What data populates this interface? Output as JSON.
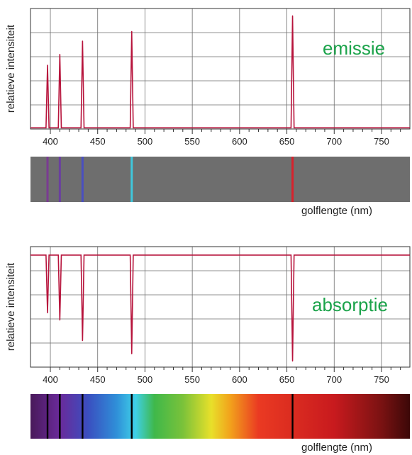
{
  "chart_data": [
    {
      "type": "line",
      "title": "",
      "annotation": "emissie",
      "ylabel": "relatieve intensiteit",
      "xlabel": "",
      "xlim": [
        379,
        780
      ],
      "ylim": [
        0,
        1
      ],
      "x_ticks": [
        400,
        450,
        500,
        550,
        600,
        650,
        700,
        750
      ],
      "grid": true,
      "line_color": "#b7143c",
      "series": [
        {
          "lines_nm": [
            397,
            410,
            434,
            486,
            656
          ],
          "peak_heights": [
            0.53,
            0.62,
            0.73,
            0.81,
            0.94
          ]
        }
      ]
    },
    {
      "type": "spectrum-strip",
      "kind": "emission",
      "xlabel": "golflengte (nm)",
      "background": "#6e6e6e",
      "lines": [
        {
          "nm": 397,
          "color": "#7a3b92"
        },
        {
          "nm": 410,
          "color": "#6a3fa0"
        },
        {
          "nm": 434,
          "color": "#4a4fc0"
        },
        {
          "nm": 486,
          "color": "#3fc7dc"
        },
        {
          "nm": 656,
          "color": "#d8222c"
        }
      ]
    },
    {
      "type": "line",
      "title": "",
      "annotation": "absorptie",
      "ylabel": "relatieve intensiteit",
      "xlabel": "",
      "xlim": [
        379,
        780
      ],
      "ylim": [
        0,
        1
      ],
      "x_ticks": [
        400,
        450,
        500,
        550,
        600,
        650,
        700,
        750
      ],
      "grid": true,
      "baseline": 0.93,
      "line_color": "#b7143c",
      "series": [
        {
          "lines_nm": [
            397,
            410,
            434,
            486,
            656
          ],
          "dip_bottoms": [
            0.45,
            0.39,
            0.22,
            0.11,
            0.05
          ]
        }
      ]
    },
    {
      "type": "spectrum-strip",
      "kind": "absorption",
      "xlabel": "golflengte (nm)",
      "line_color": "#000000",
      "lines_nm": [
        397,
        410,
        434,
        486,
        656
      ],
      "gradient": [
        {
          "nm": 380,
          "color": "#4a1a5c"
        },
        {
          "nm": 410,
          "color": "#6a2a9a"
        },
        {
          "nm": 440,
          "color": "#3a4fc0"
        },
        {
          "nm": 470,
          "color": "#2f8fd8"
        },
        {
          "nm": 490,
          "color": "#3fd0e8"
        },
        {
          "nm": 510,
          "color": "#3fb84a"
        },
        {
          "nm": 540,
          "color": "#7ac23a"
        },
        {
          "nm": 570,
          "color": "#e8e02a"
        },
        {
          "nm": 590,
          "color": "#f2a21c"
        },
        {
          "nm": 620,
          "color": "#ea3a22"
        },
        {
          "nm": 700,
          "color": "#c81a1e"
        },
        {
          "nm": 750,
          "color": "#7a1212"
        },
        {
          "nm": 780,
          "color": "#3c0808"
        }
      ]
    }
  ]
}
